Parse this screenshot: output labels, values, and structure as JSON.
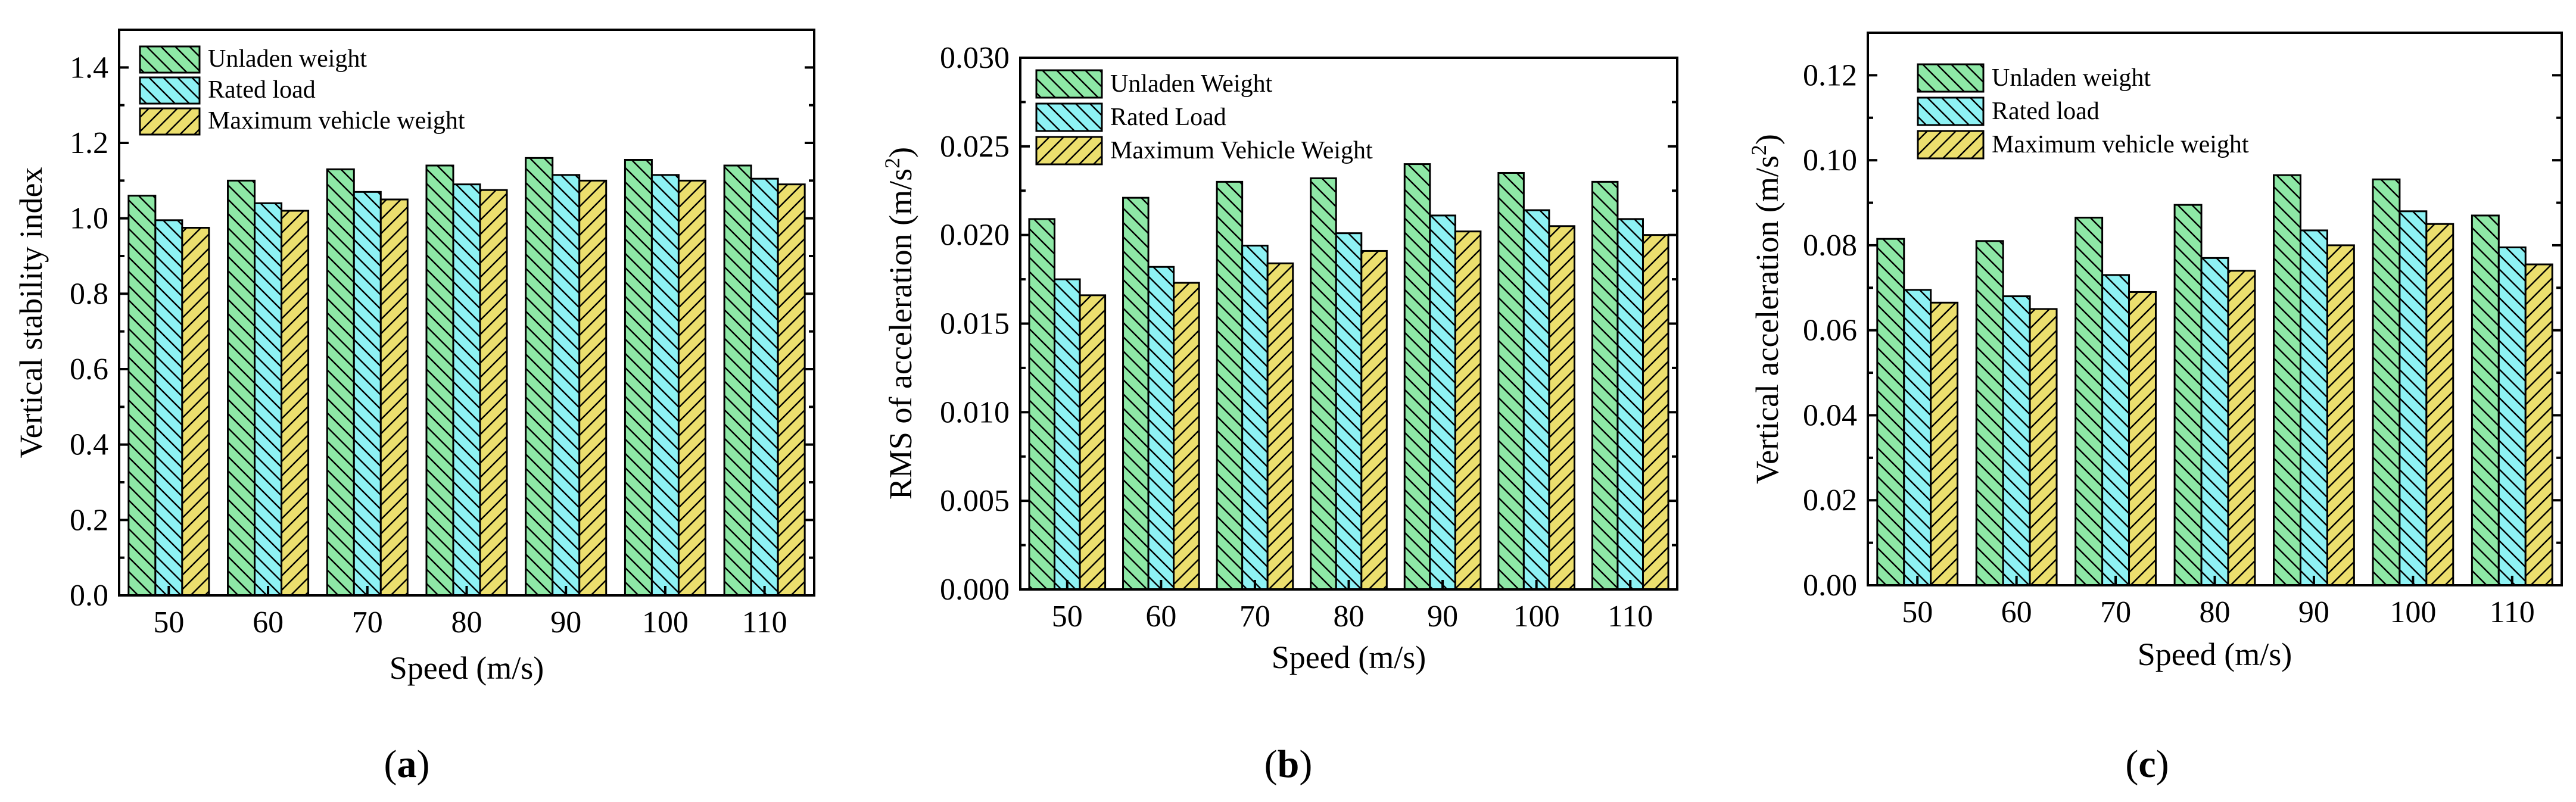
{
  "colors": {
    "unladen": "#8ee8a6",
    "rated": "#8ef2f4",
    "maximum": "#ecdf6e",
    "axis": "#000000"
  },
  "chart_data": [
    {
      "type": "bar",
      "panel": "a",
      "panel_label": "(a)",
      "categories": [
        "50",
        "60",
        "70",
        "80",
        "90",
        "100",
        "110"
      ],
      "series": [
        {
          "name": "Unladen weight",
          "key": "unladen",
          "values": [
            1.06,
            1.1,
            1.13,
            1.14,
            1.16,
            1.155,
            1.14
          ]
        },
        {
          "name": "Rated load",
          "key": "rated",
          "values": [
            0.995,
            1.04,
            1.07,
            1.09,
            1.115,
            1.115,
            1.105
          ]
        },
        {
          "name": "Maximum vehicle weight",
          "key": "maximum",
          "values": [
            0.975,
            1.02,
            1.05,
            1.075,
            1.1,
            1.1,
            1.09
          ]
        }
      ],
      "xlabel": "Speed (m/s)",
      "ylabel": "Vertical stability index",
      "ylim": [
        0.0,
        1.5
      ],
      "yticks": [
        "0.0",
        "0.2",
        "0.4",
        "0.6",
        "0.8",
        "1.0",
        "1.2",
        "1.4"
      ],
      "legend": "top-left"
    },
    {
      "type": "bar",
      "panel": "b",
      "panel_label": "(b)",
      "categories": [
        "50",
        "60",
        "70",
        "80",
        "90",
        "100",
        "110"
      ],
      "series": [
        {
          "name": "Unladen Weight",
          "key": "unladen",
          "values": [
            0.0209,
            0.0221,
            0.023,
            0.0232,
            0.024,
            0.0235,
            0.023
          ]
        },
        {
          "name": "Rated Load",
          "key": "rated",
          "values": [
            0.0175,
            0.0182,
            0.0194,
            0.0201,
            0.0211,
            0.0214,
            0.0209
          ]
        },
        {
          "name": "Maximum Vehicle Weight",
          "key": "maximum",
          "values": [
            0.0166,
            0.0173,
            0.0184,
            0.0191,
            0.0202,
            0.0205,
            0.02
          ]
        }
      ],
      "xlabel": "Speed (m/s)",
      "ylabel_main": "RMS of acceleration (m/s",
      "ylabel_sup": "2",
      "ylabel_end": ")",
      "ylim": [
        0.0,
        0.03
      ],
      "yticks": [
        "0.000",
        "0.005",
        "0.010",
        "0.015",
        "0.020",
        "0.025",
        "0.030"
      ],
      "legend": "top-left"
    },
    {
      "type": "bar",
      "panel": "c",
      "panel_label": "(c)",
      "categories": [
        "50",
        "60",
        "70",
        "80",
        "90",
        "100",
        "110"
      ],
      "series": [
        {
          "name": "Unladen weight",
          "key": "unladen",
          "values": [
            0.0815,
            0.081,
            0.0865,
            0.0895,
            0.0965,
            0.0955,
            0.087
          ]
        },
        {
          "name": "Rated load",
          "key": "rated",
          "values": [
            0.0695,
            0.068,
            0.073,
            0.077,
            0.0835,
            0.088,
            0.0795
          ]
        },
        {
          "name": "Maximum vehicle weight",
          "key": "maximum",
          "values": [
            0.0665,
            0.065,
            0.069,
            0.074,
            0.08,
            0.085,
            0.0755
          ]
        }
      ],
      "xlabel": "Speed (m/s)",
      "ylabel_main": "Vertical acceleration (m/s",
      "ylabel_sup": "2",
      "ylabel_end": ")",
      "ylim": [
        0.0,
        0.13
      ],
      "yticks": [
        "0.00",
        "0.02",
        "0.04",
        "0.06",
        "0.08",
        "0.10",
        "0.12"
      ],
      "legend": "top-left"
    }
  ]
}
